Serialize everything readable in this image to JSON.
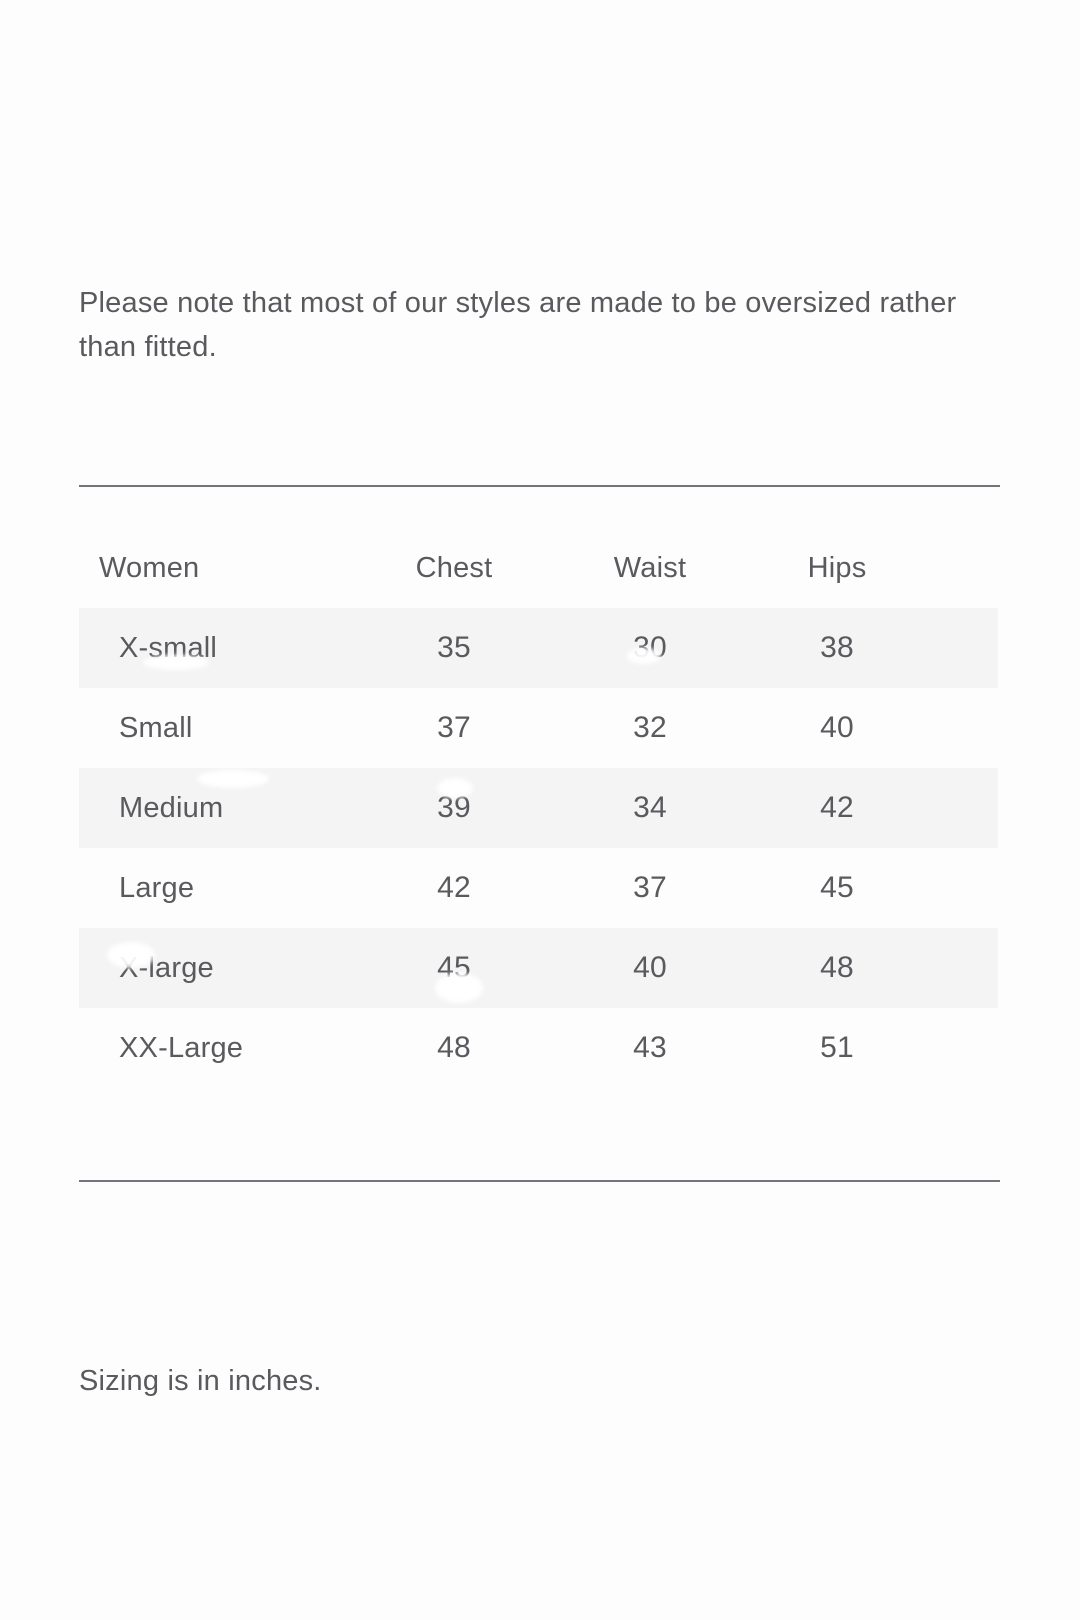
{
  "intro_note": {
    "text": "Please note that most of our styles are made to be oversized rather\nthan fitted."
  },
  "size_table": {
    "columns": [
      "Women",
      "Chest",
      "Waist",
      "Hips"
    ],
    "rows": [
      {
        "size": "X-small",
        "chest": "35",
        "waist": "30",
        "hips": "38"
      },
      {
        "size": "Small",
        "chest": "37",
        "waist": "32",
        "hips": "40"
      },
      {
        "size": "Medium",
        "chest": "39",
        "waist": "34",
        "hips": "42"
      },
      {
        "size": "Large",
        "chest": "42",
        "waist": "37",
        "hips": "45"
      },
      {
        "size": "X-large",
        "chest": "45",
        "waist": "40",
        "hips": "48"
      },
      {
        "size": "XX-Large",
        "chest": "48",
        "waist": "43",
        "hips": "51"
      }
    ]
  },
  "footer_note": {
    "text": "Sizing is in inches."
  },
  "colors": {
    "background": "#fdfdfd",
    "stripe": "#f4f4f5",
    "rule": "#76747a",
    "text": "#5a5a5e"
  }
}
